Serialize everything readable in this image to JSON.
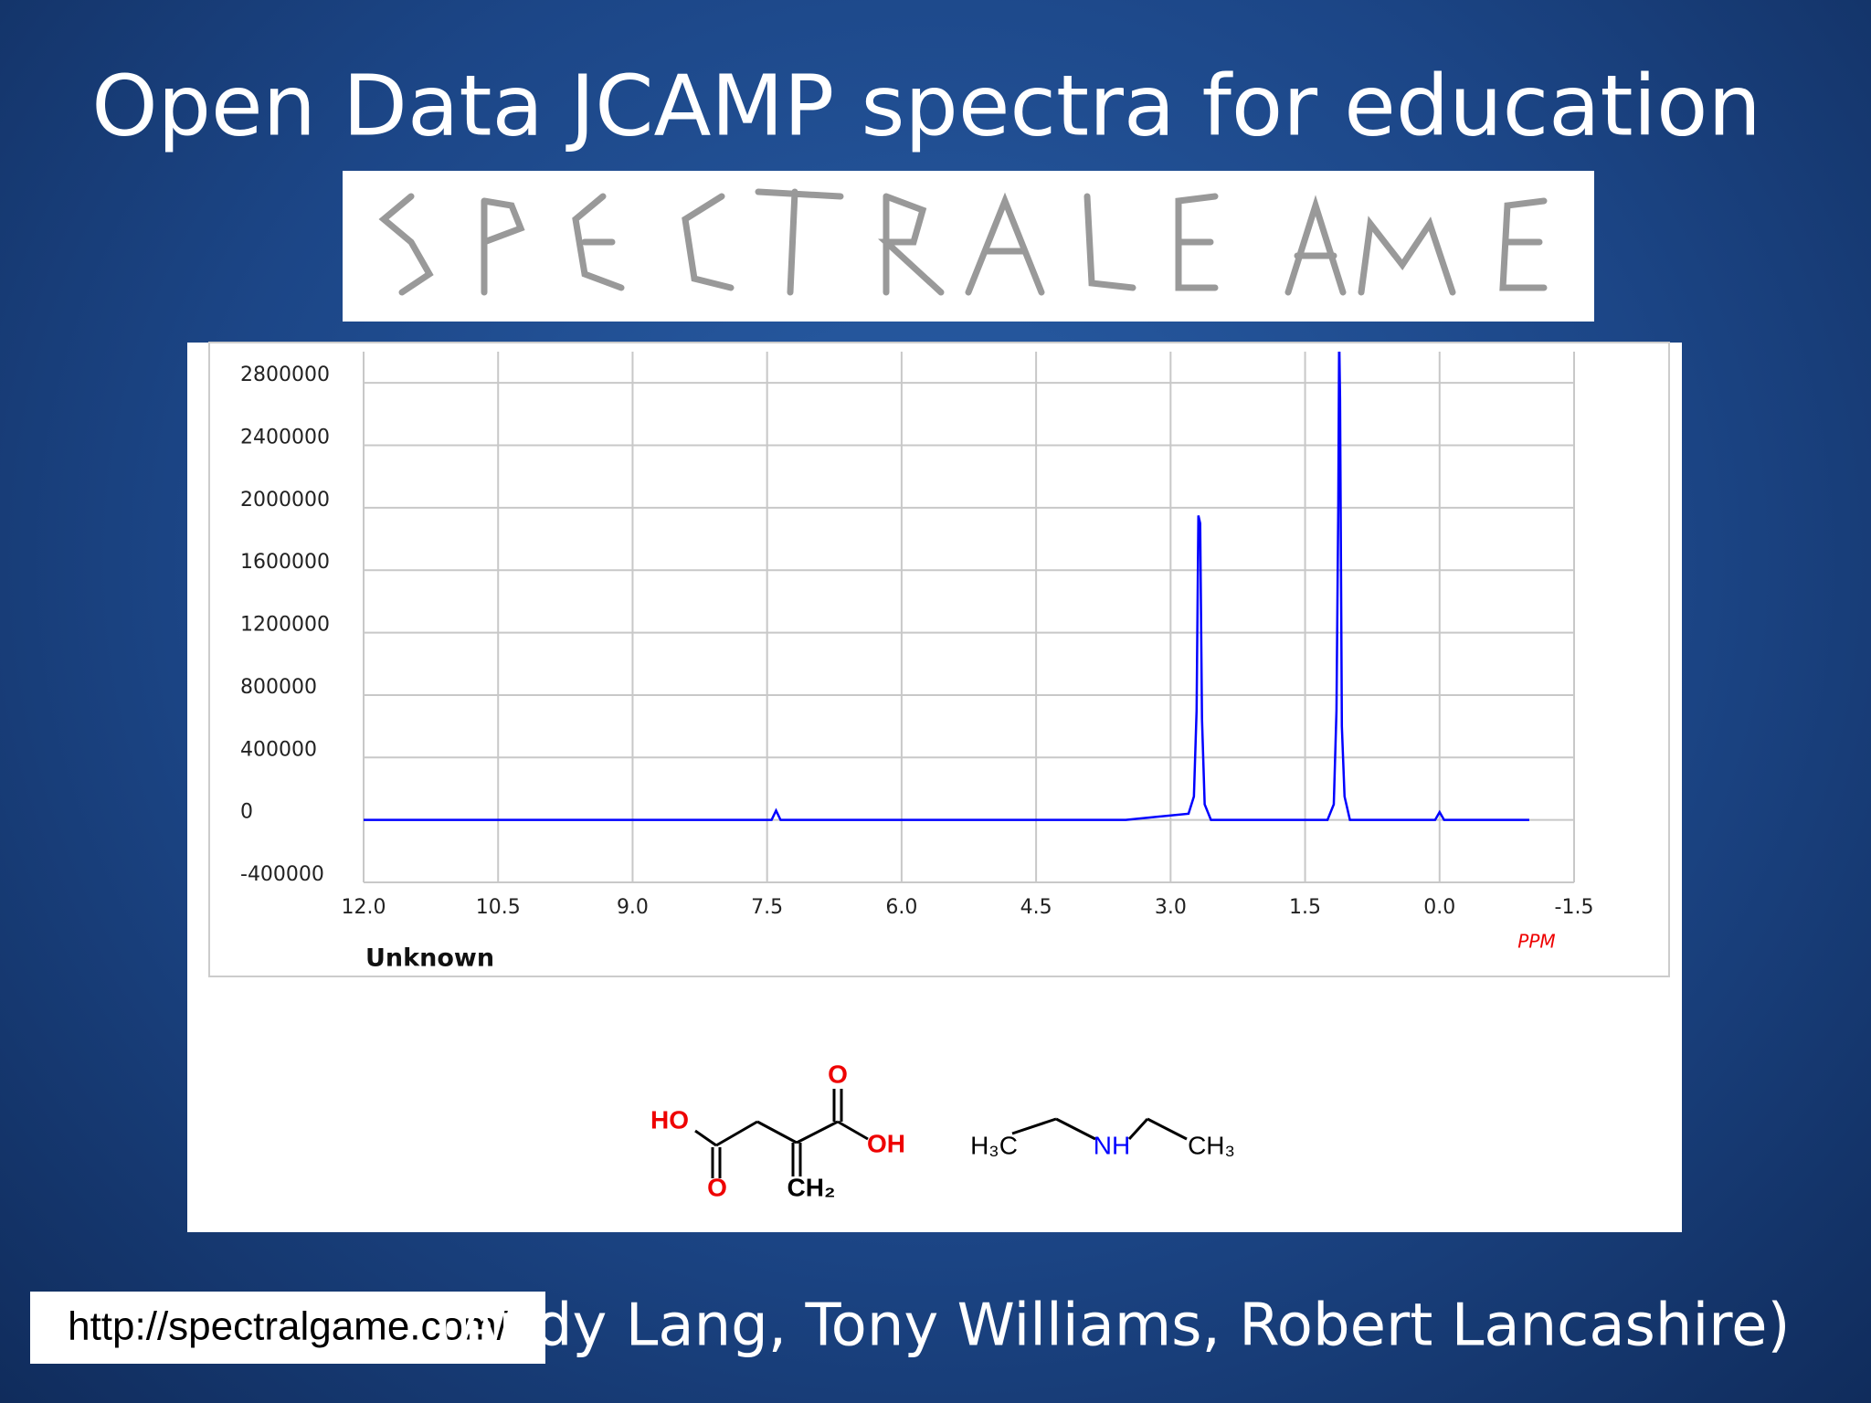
{
  "title": "Open Data JCAMP spectra for education",
  "chart_data": {
    "type": "line",
    "title": "Unknown",
    "xlabel": "PPM",
    "x": [
      12.0,
      7.45,
      7.4,
      7.35,
      3.5,
      2.8,
      2.74,
      2.71,
      2.69,
      2.67,
      2.65,
      2.62,
      2.55,
      1.25,
      1.18,
      1.15,
      1.13,
      1.12,
      1.11,
      1.09,
      1.06,
      1.0,
      0.05,
      0.0,
      -0.05,
      -1.0
    ],
    "series": [
      {
        "name": "spectrum",
        "color": "#0000ff",
        "values": [
          0,
          0,
          60000,
          0,
          0,
          40000,
          150000,
          700000,
          1950000,
          1900000,
          650000,
          100000,
          0,
          0,
          100000,
          700000,
          2000000,
          3100000,
          2700000,
          600000,
          150000,
          0,
          0,
          50000,
          0,
          0
        ]
      }
    ],
    "xlim": [
      12,
      -1.5
    ],
    "xticks": [
      {
        "value": 12,
        "label": "12.0"
      },
      10.5,
      {
        "value": 9,
        "label": "9.0"
      },
      7.5,
      {
        "value": 6,
        "label": "6.0"
      },
      4.5,
      {
        "value": 3,
        "label": "3.0"
      },
      1.5,
      {
        "value": 0,
        "label": "0.0"
      },
      -1.5
    ],
    "ylim": [
      -400000,
      3000000
    ],
    "yticks": [
      -400000,
      0,
      400000,
      800000,
      1200000,
      1600000,
      2000000,
      2400000,
      2800000
    ],
    "grid": true
  },
  "molecules": [
    {
      "labels": [
        "HO",
        "O",
        "O",
        "OH",
        "CH₂"
      ]
    },
    {
      "labels": [
        "H₃C",
        "NH",
        "CH₃"
      ]
    }
  ],
  "url": "http://spectralgame.com/",
  "credits": "(Andy Lang, Tony Williams, Robert Lancashire)"
}
